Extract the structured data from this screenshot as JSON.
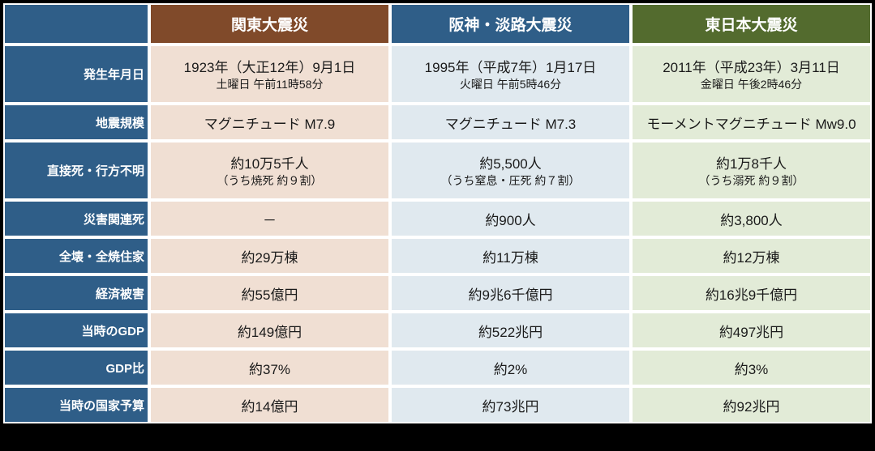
{
  "table": {
    "colors": {
      "header_bg": "#2f5e88",
      "col1_header_bg": "#804a2a",
      "col2_header_bg": "#2f5e88",
      "col3_header_bg": "#536b2e",
      "col1_cell_bg": "#f0dfd3",
      "col2_cell_bg": "#e0e9ef",
      "col3_cell_bg": "#e2ebd7",
      "text": "#1a1a1a"
    },
    "row_heights": {
      "header": 46,
      "row0": 68,
      "row1": 46,
      "row2": 68,
      "row3": 46,
      "row4": 46,
      "row5": 46,
      "row6": 46,
      "row7": 46,
      "row8": 46
    },
    "column_headers": [
      "関東大震災",
      "阪神・淡路大震災",
      "東日本大震災"
    ],
    "row_headers": [
      "発生年月日",
      "地震規模",
      "直接死・行方不明",
      "災害関連死",
      "全壊・全焼住家",
      "経済被害",
      "当時のGDP",
      "GDP比",
      "当時の国家予算"
    ],
    "cells": {
      "r0": {
        "c1": {
          "main": "1923年（大正12年）9月1日",
          "sub": "土曜日 午前11時58分"
        },
        "c2": {
          "main": "1995年（平成7年）1月17日",
          "sub": "火曜日 午前5時46分"
        },
        "c3": {
          "main": "2011年（平成23年）3月11日",
          "sub": "金曜日 午後2時46分"
        }
      },
      "r1": {
        "c1": {
          "main": "マグニチュード M7.9"
        },
        "c2": {
          "main": "マグニチュード M7.3"
        },
        "c3": {
          "main": "モーメントマグニチュード Mw9.0"
        }
      },
      "r2": {
        "c1": {
          "main": "約10万5千人",
          "sub": "（うち焼死 約９割）"
        },
        "c2": {
          "main": "約5,500人",
          "sub": "（うち窒息・圧死 約７割）"
        },
        "c3": {
          "main": "約1万8千人",
          "sub": "（うち溺死 約９割）"
        }
      },
      "r3": {
        "c1": {
          "main": "－"
        },
        "c2": {
          "main": "約900人"
        },
        "c3": {
          "main": "約3,800人"
        }
      },
      "r4": {
        "c1": {
          "main": "約29万棟"
        },
        "c2": {
          "main": "約11万棟"
        },
        "c3": {
          "main": "約12万棟"
        }
      },
      "r5": {
        "c1": {
          "main": "約55億円"
        },
        "c2": {
          "main": "約9兆6千億円"
        },
        "c3": {
          "main": "約16兆9千億円"
        }
      },
      "r6": {
        "c1": {
          "main": "約149億円"
        },
        "c2": {
          "main": "約522兆円"
        },
        "c3": {
          "main": "約497兆円"
        }
      },
      "r7": {
        "c1": {
          "main": "約37%"
        },
        "c2": {
          "main": "約2%"
        },
        "c3": {
          "main": "約3%"
        }
      },
      "r8": {
        "c1": {
          "main": "約14億円"
        },
        "c2": {
          "main": "約73兆円"
        },
        "c3": {
          "main": "約92兆円"
        }
      }
    }
  }
}
